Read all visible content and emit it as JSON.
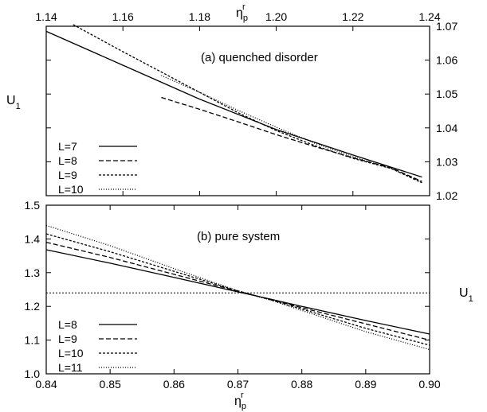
{
  "chart_data": [
    {
      "type": "line",
      "annotation": "(a) quenched disorder",
      "xlabel": "η",
      "xlabel_sub": "p",
      "xlabel_sup": "r",
      "ylabel": "U",
      "ylabel_sub": "1",
      "xaxis_position": "top",
      "yaxis_position": "right",
      "xlim": [
        1.14,
        1.24
      ],
      "ylim": [
        1.02,
        1.07
      ],
      "xticks": [
        "1.14",
        "1.16",
        "1.18",
        "1.20",
        "1.22",
        "1.24"
      ],
      "yticks": [
        "1.02",
        "1.03",
        "1.04",
        "1.05",
        "1.06",
        "1.07"
      ],
      "grid": false,
      "legend_position": "bottom-left",
      "series": [
        {
          "name": "L=7",
          "dash": "",
          "x": [
            1.14,
            1.16,
            1.18,
            1.2,
            1.22,
            1.238
          ],
          "y": [
            1.0685,
            1.0585,
            1.0485,
            1.0395,
            1.032,
            1.0255
          ]
        },
        {
          "name": "L=8",
          "dash": "6,3",
          "x": [
            1.17,
            1.18,
            1.19,
            1.2,
            1.21,
            1.22,
            1.23,
            1.238
          ],
          "y": [
            1.049,
            1.0455,
            1.0418,
            1.038,
            1.0345,
            1.0312,
            1.0282,
            1.0242
          ]
        },
        {
          "name": "L=9",
          "dash": "3,2",
          "x": [
            1.147,
            1.16,
            1.17,
            1.18,
            1.19,
            1.2,
            1.21,
            1.22,
            1.23,
            1.238
          ],
          "y": [
            1.0705,
            1.0625,
            1.0565,
            1.0505,
            1.0445,
            1.0392,
            1.0348,
            1.031,
            1.028,
            1.0238
          ]
        },
        {
          "name": "L=10",
          "dash": "1,2",
          "x": [
            1.17,
            1.18,
            1.19,
            1.2,
            1.21,
            1.22,
            1.23,
            1.238
          ],
          "y": [
            1.0555,
            1.0505,
            1.0452,
            1.0402,
            1.0355,
            1.0315,
            1.028,
            1.024
          ]
        }
      ]
    },
    {
      "type": "line",
      "annotation": "(b) pure system",
      "xlabel": "η",
      "xlabel_sub": "p",
      "xlabel_sup": "r",
      "ylabel": "U",
      "ylabel_sub": "1",
      "xaxis_position": "bottom",
      "yaxis_position": "left",
      "xlim": [
        0.84,
        0.9
      ],
      "ylim": [
        1.0,
        1.5
      ],
      "xticks": [
        "0.84",
        "0.85",
        "0.86",
        "0.87",
        "0.88",
        "0.89",
        "0.90"
      ],
      "yticks": [
        "1.0",
        "1.1",
        "1.2",
        "1.3",
        "1.4",
        "1.5"
      ],
      "grid": false,
      "legend_position": "bottom-left",
      "reference_line": {
        "y": 1.24,
        "dash": "2,2"
      },
      "series": [
        {
          "name": "L=8",
          "dash": "",
          "x": [
            0.84,
            0.85,
            0.86,
            0.87,
            0.875,
            0.88,
            0.89,
            0.9
          ],
          "y": [
            1.368,
            1.328,
            1.286,
            1.243,
            1.222,
            1.2,
            1.158,
            1.118
          ]
        },
        {
          "name": "L=9",
          "dash": "6,3",
          "x": [
            0.84,
            0.85,
            0.86,
            0.87,
            0.875,
            0.88,
            0.89,
            0.9
          ],
          "y": [
            1.39,
            1.345,
            1.295,
            1.245,
            1.221,
            1.196,
            1.148,
            1.1
          ]
        },
        {
          "name": "L=10",
          "dash": "3,2",
          "x": [
            0.84,
            0.85,
            0.86,
            0.87,
            0.875,
            0.88,
            0.89,
            0.9
          ],
          "y": [
            1.415,
            1.362,
            1.304,
            1.246,
            1.22,
            1.192,
            1.135,
            1.085
          ]
        },
        {
          "name": "L=11",
          "dash": "1,2",
          "x": [
            0.84,
            0.85,
            0.86,
            0.87,
            0.875,
            0.88,
            0.89,
            0.9
          ],
          "y": [
            1.44,
            1.38,
            1.312,
            1.246,
            1.219,
            1.188,
            1.125,
            1.072
          ]
        }
      ]
    }
  ]
}
